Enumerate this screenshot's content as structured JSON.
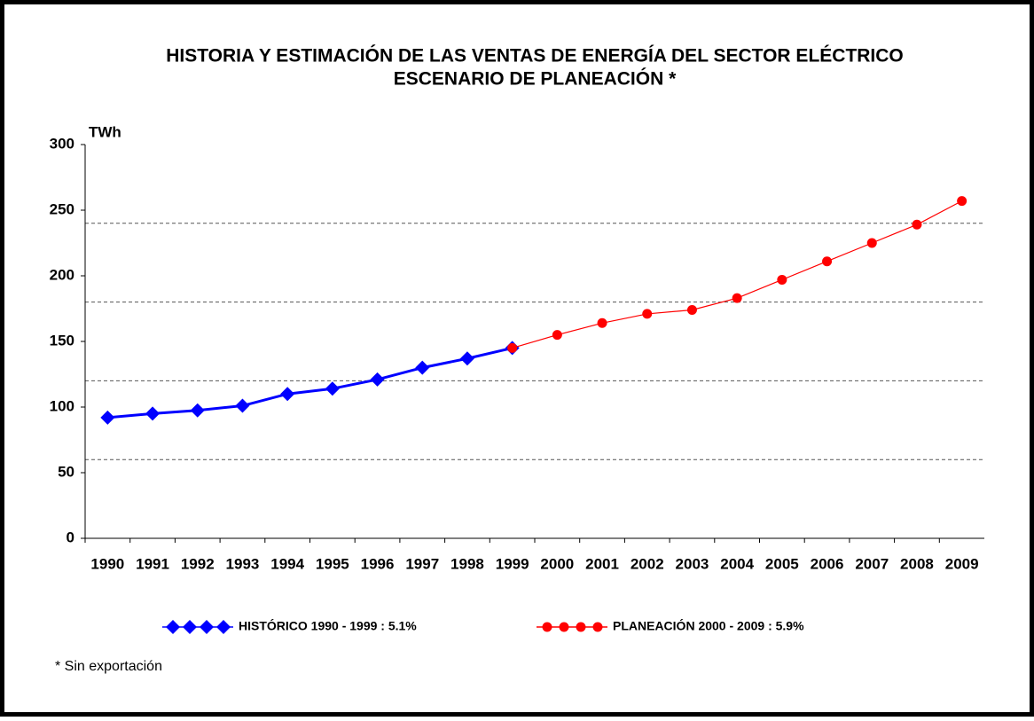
{
  "chart_data": {
    "type": "line",
    "title": "HISTORIA Y ESTIMACIÓN DE LAS VENTAS DE ENERGÍA DEL SECTOR ELÉCTRICO",
    "subtitle": "ESCENARIO DE PLANEACIÓN *",
    "y_axis_label": "TWh",
    "note": "* Sin exportación",
    "categories": [
      "1990",
      "1991",
      "1992",
      "1993",
      "1994",
      "1995",
      "1996",
      "1997",
      "1998",
      "1999",
      "2000",
      "2001",
      "2002",
      "2003",
      "2004",
      "2005",
      "2006",
      "2007",
      "2008",
      "2009"
    ],
    "series": [
      {
        "name": "HISTÓRICO 1990 - 1999 : 5.1%",
        "color": "#0000ff",
        "marker": "diamond",
        "values": [
          92,
          95,
          97.5,
          101,
          110,
          114,
          121,
          130,
          137,
          145,
          null,
          null,
          null,
          null,
          null,
          null,
          null,
          null,
          null,
          null
        ]
      },
      {
        "name": "PLANEACIÓN 2000 - 2009 : 5.9%",
        "color": "#ff0000",
        "marker": "circle",
        "values": [
          null,
          null,
          null,
          null,
          null,
          null,
          null,
          null,
          null,
          145,
          155,
          164,
          171,
          174,
          183,
          197,
          211,
          225,
          239,
          257
        ]
      }
    ],
    "ylim": [
      0,
      300
    ],
    "yticks": [
      0,
      50,
      100,
      150,
      200,
      250,
      300
    ],
    "grid_lines": [
      60,
      120,
      180,
      240
    ]
  }
}
